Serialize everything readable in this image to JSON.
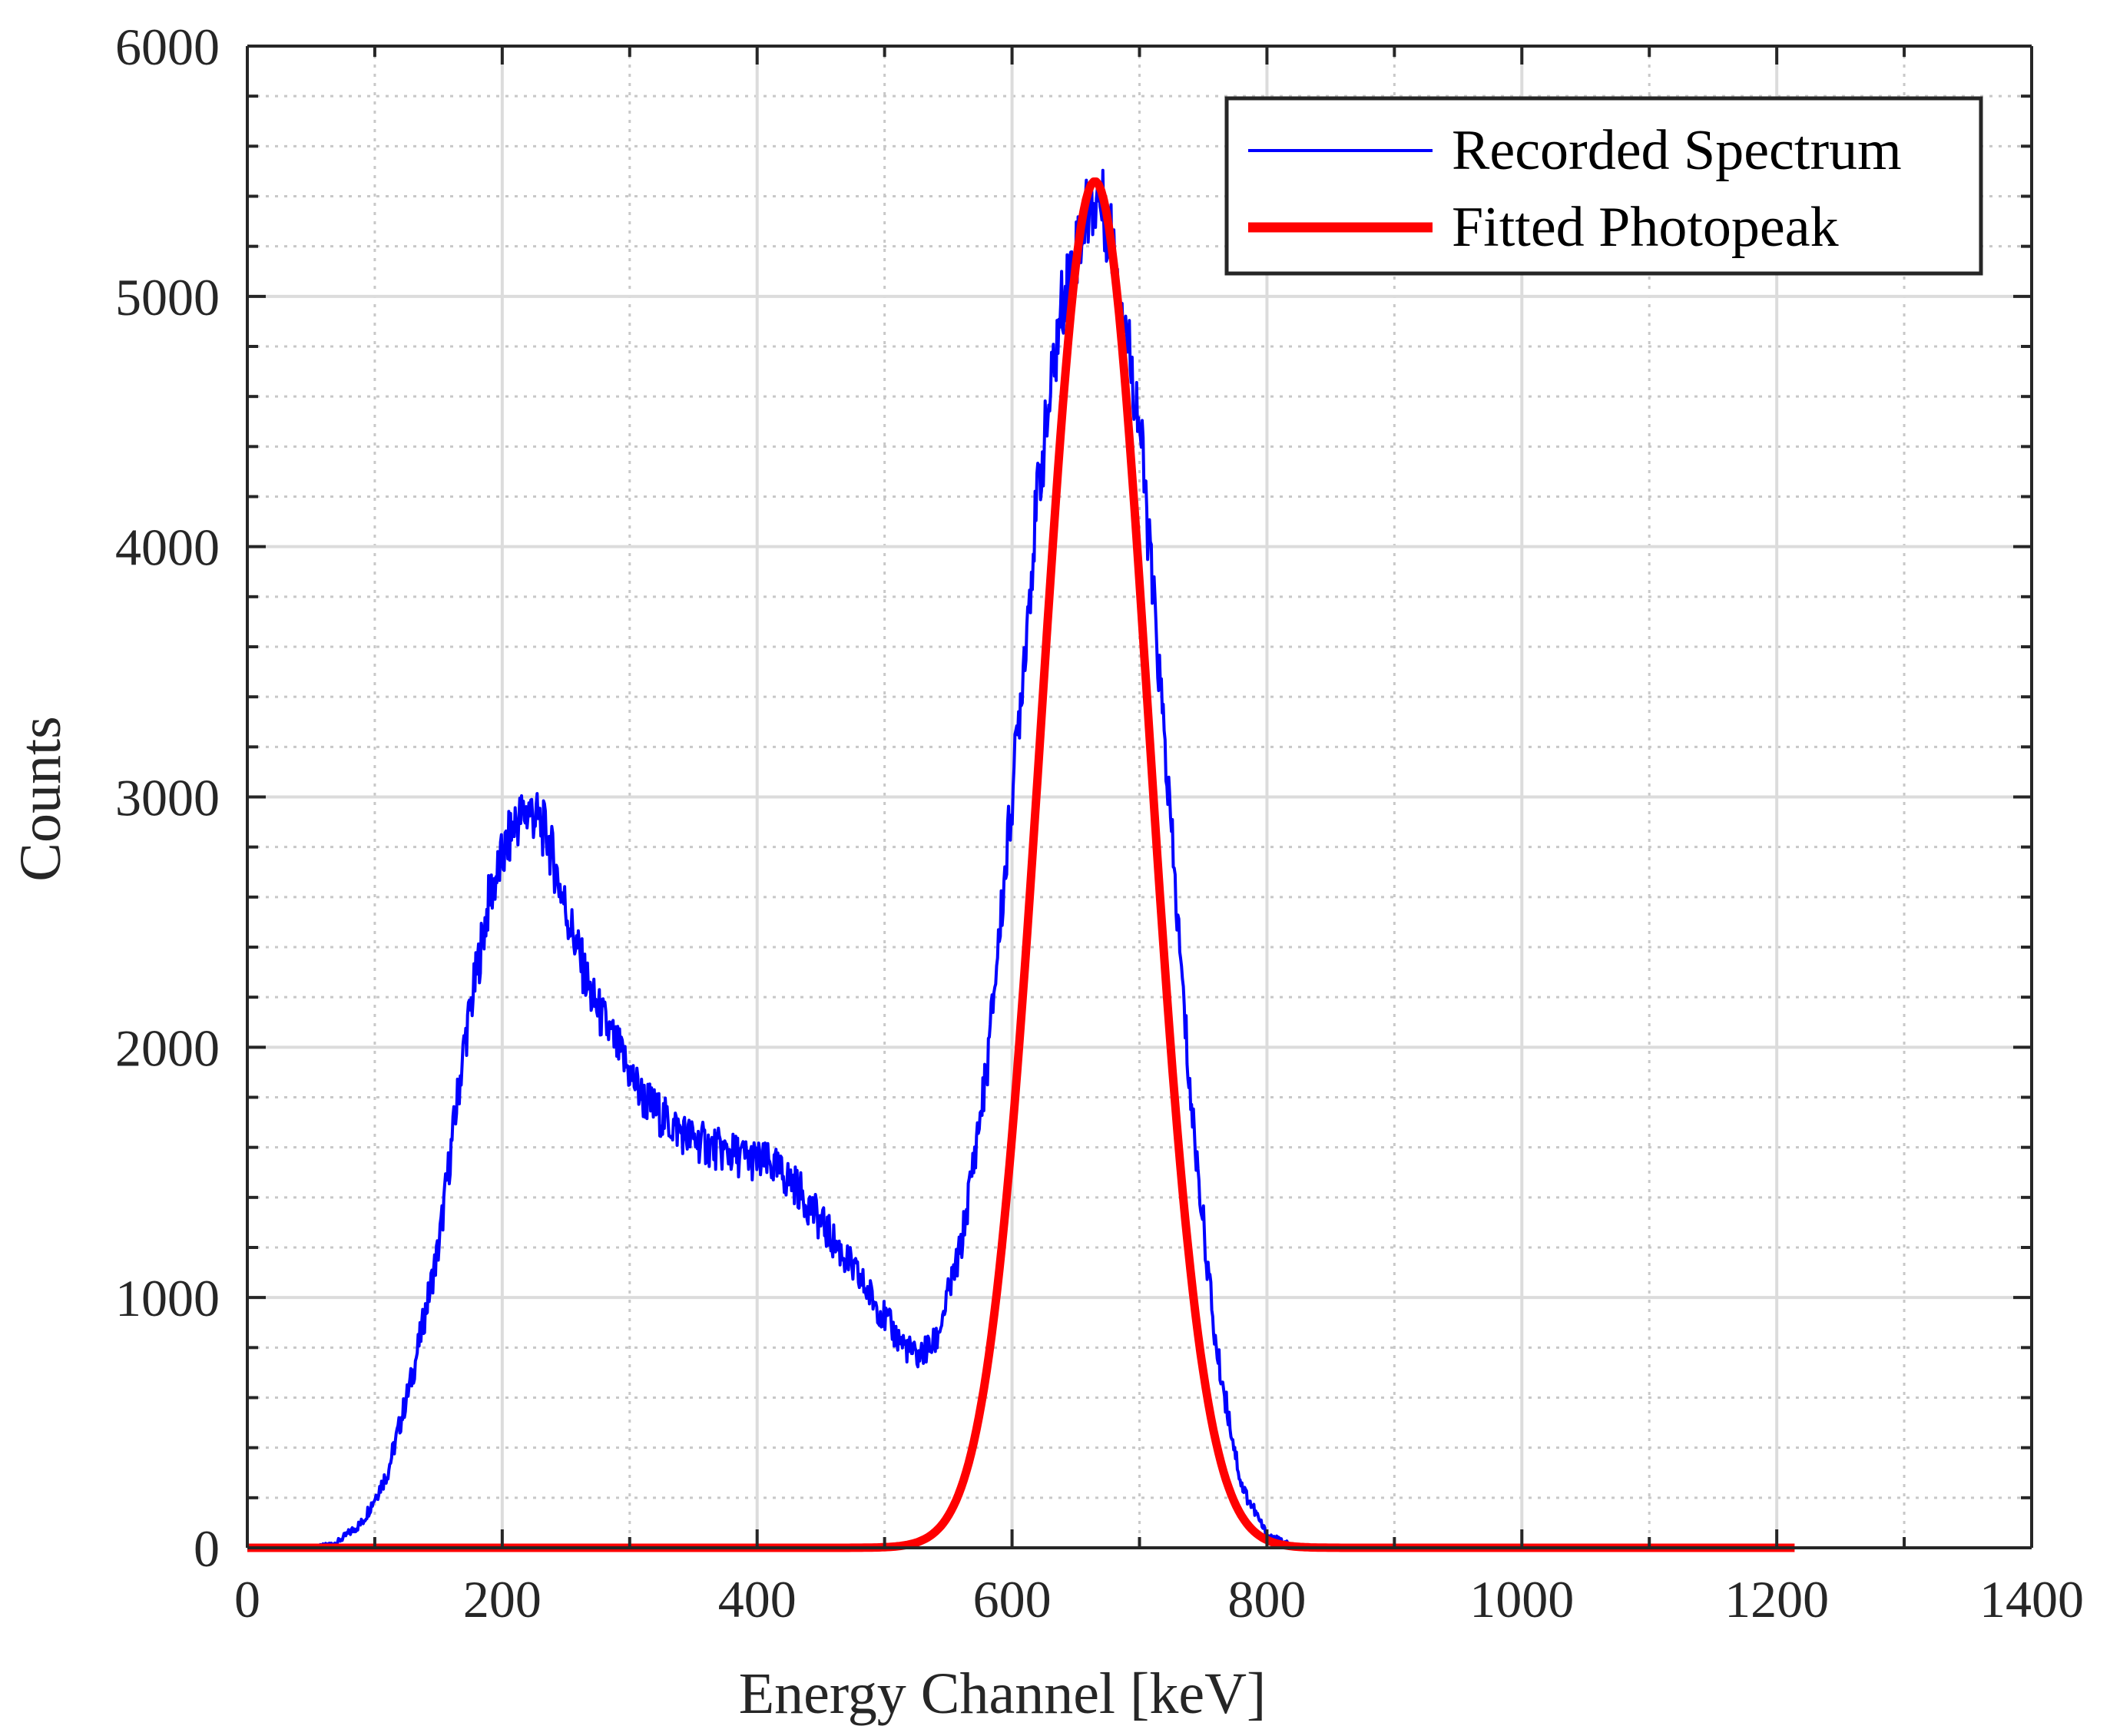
{
  "chart_data": {
    "type": "line",
    "title": "",
    "xlabel": "Energy Channel [keV]",
    "ylabel": "Counts",
    "xlim": [
      0,
      1400
    ],
    "ylim": [
      0,
      6000
    ],
    "grid": true,
    "minor_grid": true,
    "legend_position": "top-right",
    "x_ticks": [
      0,
      200,
      400,
      600,
      800,
      1000,
      1200,
      1400
    ],
    "x_tick_labels": [
      "0",
      "200",
      "400",
      "600",
      "800",
      "1000",
      "1200",
      "1400"
    ],
    "y_ticks": [
      0,
      1000,
      2000,
      3000,
      4000,
      5000,
      6000
    ],
    "y_tick_labels": [
      "0",
      "1000",
      "2000",
      "3000",
      "4000",
      "5000",
      "6000"
    ],
    "series": [
      {
        "name": "Recorded Spectrum",
        "color": "#0000ff",
        "x": [
          50,
          70,
          90,
          110,
          130,
          150,
          170,
          190,
          210,
          222,
          235,
          250,
          270,
          290,
          310,
          330,
          350,
          370,
          390,
          410,
          430,
          450,
          470,
          490,
          510,
          525,
          540,
          560,
          580,
          600,
          620,
          640,
          660,
          668,
          680,
          700,
          720,
          740,
          760,
          780,
          800,
          820,
          840
        ],
        "y": [
          0,
          20,
          100,
          300,
          700,
          1200,
          2000,
          2600,
          2900,
          2950,
          2850,
          2550,
          2200,
          2000,
          1800,
          1700,
          1630,
          1590,
          1560,
          1530,
          1450,
          1300,
          1150,
          1000,
          840,
          760,
          820,
          1200,
          1900,
          3000,
          4200,
          5000,
          5350,
          5400,
          5200,
          4500,
          3200,
          1800,
          800,
          250,
          50,
          10,
          0
        ]
      },
      {
        "name": "Fitted Photopeak",
        "color": "#ff0000",
        "model": "gaussian",
        "amplitude": 5460,
        "center": 665,
        "sigma": 42,
        "x_range": [
          0,
          1215
        ]
      }
    ]
  },
  "legend": {
    "entries": [
      "Recorded Spectrum",
      "Fitted Photopeak"
    ]
  }
}
